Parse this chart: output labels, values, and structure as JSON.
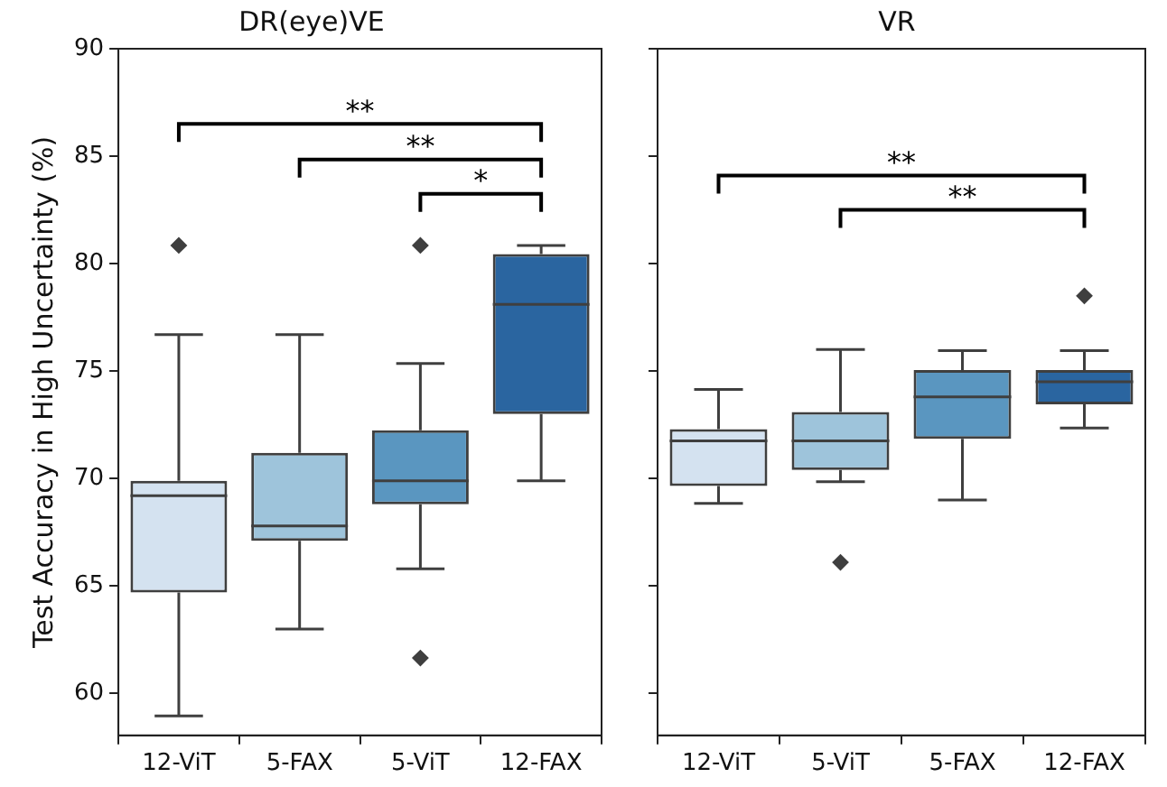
{
  "chart_data": [
    {
      "type": "box",
      "title": "DR(eye)VE",
      "ylabel": "Test Accuracy in High Uncertainty (%)",
      "categories": [
        "12-ViT",
        "5-FAX",
        "5-ViT",
        "12-FAX"
      ],
      "colors": [
        "#d4e2f0",
        "#9ec4db",
        "#5a96c0",
        "#2a65a0"
      ],
      "boxes": [
        {
          "low": 58.95,
          "q1": 64.7,
          "median": 69.2,
          "q3": 69.9,
          "high": 76.7,
          "outliers": [
            80.85
          ]
        },
        {
          "low": 63.0,
          "q1": 67.1,
          "median": 67.8,
          "q3": 71.2,
          "high": 76.7
        },
        {
          "low": 65.8,
          "q1": 68.8,
          "median": 69.9,
          "q3": 72.25,
          "high": 75.35,
          "outliers": [
            80.85,
            61.65
          ]
        },
        {
          "low": 69.9,
          "q1": 73.0,
          "median": 78.1,
          "q3": 80.45,
          "high": 80.85
        }
      ],
      "ylim": [
        58.05,
        90
      ],
      "yticks": [
        60,
        65,
        70,
        75,
        80,
        85,
        90
      ],
      "grid": false,
      "annotations": [
        "**",
        "**",
        "*"
      ]
    },
    {
      "type": "box",
      "title": "VR",
      "categories": [
        "12-ViT",
        "5-ViT",
        "5-FAX",
        "12-FAX"
      ],
      "colors": [
        "#d4e2f0",
        "#9ec4db",
        "#5a96c0",
        "#2a65a0"
      ],
      "boxes": [
        {
          "low": 68.85,
          "q1": 69.65,
          "median": 71.75,
          "q3": 72.3,
          "high": 74.15
        },
        {
          "low": 69.85,
          "q1": 70.4,
          "median": 71.75,
          "q3": 73.1,
          "high": 76.0,
          "outliers": [
            66.1
          ]
        },
        {
          "low": 69.0,
          "q1": 71.85,
          "median": 73.8,
          "q3": 75.05,
          "high": 75.95
        },
        {
          "low": 72.35,
          "q1": 73.45,
          "median": 74.5,
          "q3": 75.05,
          "high": 75.95,
          "outliers": [
            78.5
          ]
        }
      ],
      "ylim": [
        58.05,
        90
      ],
      "yticks": [
        60,
        65,
        70,
        75,
        80,
        85,
        90
      ],
      "grid": false,
      "tick_labels": "x",
      "annotations": [
        "**",
        "**"
      ]
    }
  ]
}
